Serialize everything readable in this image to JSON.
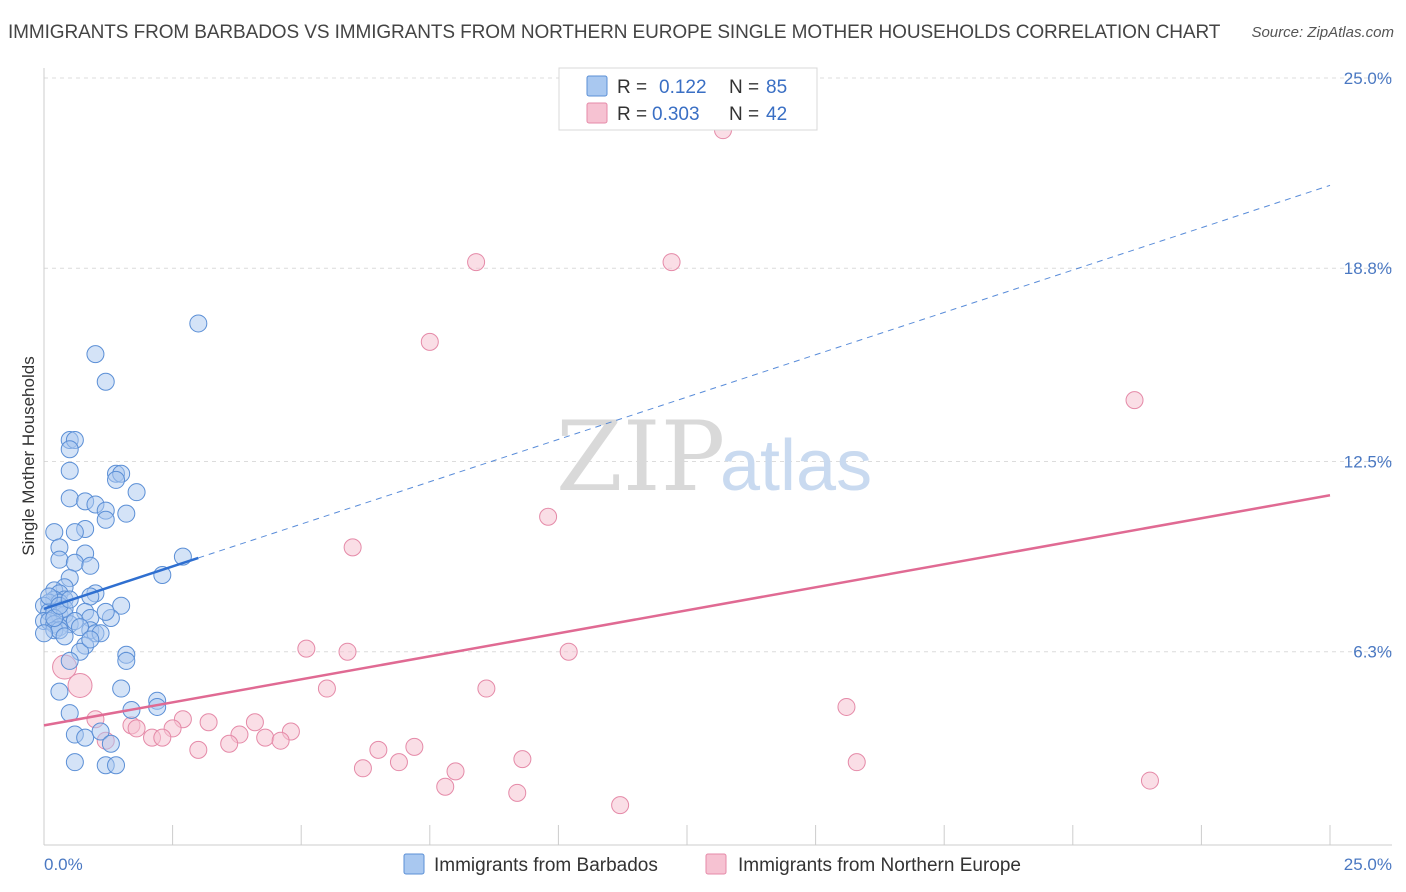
{
  "header": {
    "title": "IMMIGRANTS FROM BARBADOS VS IMMIGRANTS FROM NORTHERN EUROPE SINGLE MOTHER HOUSEHOLDS CORRELATION CHART",
    "source": "Source: ZipAtlas.com"
  },
  "watermark": {
    "zip": "ZIP",
    "atlas": "atlas"
  },
  "colors": {
    "blue_fill": "#a9c8f0",
    "blue_stroke": "#5b8fd6",
    "blue_line": "#2f6fd0",
    "pink_fill": "#f6c2d2",
    "pink_stroke": "#e58aa8",
    "pink_line": "#e06a93",
    "grid": "#dcdcdc",
    "tick_text": "#4a78c2"
  },
  "chart_data": {
    "type": "scatter",
    "title": "IMMIGRANTS FROM BARBADOS VS IMMIGRANTS FROM NORTHERN EUROPE SINGLE MOTHER HOUSEHOLDS CORRELATION CHART",
    "xlabel": "",
    "ylabel": "Single Mother Households",
    "xlim": [
      0,
      25
    ],
    "ylim": [
      0,
      25
    ],
    "x_tick_labels": [
      "0.0%",
      "25.0%"
    ],
    "y_ticks": [
      6.3,
      12.5,
      18.8,
      25.0
    ],
    "y_tick_labels": [
      "6.3%",
      "12.5%",
      "18.8%",
      "25.0%"
    ],
    "legend": {
      "position": "top-center",
      "entries": [
        {
          "r_label": "R =",
          "r_value": "0.122",
          "n_label": "N =",
          "n_value": "85"
        },
        {
          "r_label": "R =",
          "r_value": "0.303",
          "n_label": "N =",
          "n_value": "42"
        }
      ]
    },
    "series": [
      {
        "name": "Immigrants from Barbados",
        "color": "#5b8fd6",
        "trend": {
          "x0": 0,
          "y0": 7.7,
          "x_solid_end": 3.0,
          "x1": 25,
          "y1": 21.5
        },
        "points": [
          [
            3.0,
            17.0
          ],
          [
            1.0,
            16.0
          ],
          [
            1.2,
            15.1
          ],
          [
            0.5,
            13.2
          ],
          [
            0.6,
            13.2
          ],
          [
            0.5,
            12.9
          ],
          [
            0.5,
            12.2
          ],
          [
            1.4,
            12.1
          ],
          [
            1.5,
            12.1
          ],
          [
            1.4,
            11.9
          ],
          [
            0.5,
            11.3
          ],
          [
            0.8,
            11.2
          ],
          [
            1.0,
            11.1
          ],
          [
            1.8,
            11.5
          ],
          [
            1.2,
            10.9
          ],
          [
            1.6,
            10.8
          ],
          [
            1.2,
            10.6
          ],
          [
            0.8,
            10.3
          ],
          [
            0.6,
            10.2
          ],
          [
            0.2,
            10.2
          ],
          [
            0.3,
            9.7
          ],
          [
            0.8,
            9.5
          ],
          [
            0.3,
            9.3
          ],
          [
            0.6,
            9.2
          ],
          [
            0.9,
            9.1
          ],
          [
            2.7,
            9.4
          ],
          [
            2.3,
            8.8
          ],
          [
            0.5,
            8.7
          ],
          [
            0.4,
            8.4
          ],
          [
            0.2,
            8.3
          ],
          [
            0.3,
            8.2
          ],
          [
            1.0,
            8.2
          ],
          [
            0.9,
            8.1
          ],
          [
            0.4,
            8.0
          ],
          [
            0.2,
            8.0
          ],
          [
            0.1,
            7.9
          ],
          [
            0.3,
            7.9
          ],
          [
            0.0,
            7.8
          ],
          [
            1.5,
            7.8
          ],
          [
            0.1,
            7.6
          ],
          [
            0.2,
            7.6
          ],
          [
            0.3,
            7.5
          ],
          [
            0.4,
            7.5
          ],
          [
            0.8,
            7.6
          ],
          [
            0.9,
            7.4
          ],
          [
            0.0,
            7.3
          ],
          [
            0.1,
            7.3
          ],
          [
            0.2,
            7.2
          ],
          [
            0.5,
            7.2
          ],
          [
            0.3,
            7.1
          ],
          [
            0.2,
            7.0
          ],
          [
            0.3,
            7.0
          ],
          [
            0.9,
            7.0
          ],
          [
            1.0,
            6.9
          ],
          [
            1.1,
            6.9
          ],
          [
            0.0,
            6.9
          ],
          [
            0.8,
            6.5
          ],
          [
            0.7,
            6.3
          ],
          [
            1.6,
            6.2
          ],
          [
            1.6,
            6.0
          ],
          [
            0.5,
            6.0
          ],
          [
            0.3,
            5.0
          ],
          [
            1.5,
            5.1
          ],
          [
            2.2,
            4.7
          ],
          [
            2.2,
            4.5
          ],
          [
            0.5,
            4.3
          ],
          [
            1.7,
            4.4
          ],
          [
            0.6,
            3.6
          ],
          [
            0.8,
            3.5
          ],
          [
            1.1,
            3.7
          ],
          [
            1.3,
            3.3
          ],
          [
            0.6,
            2.7
          ],
          [
            1.2,
            2.6
          ],
          [
            1.4,
            2.6
          ],
          [
            0.4,
            7.7
          ],
          [
            0.1,
            8.1
          ],
          [
            0.6,
            7.3
          ],
          [
            1.3,
            7.4
          ],
          [
            0.2,
            7.4
          ],
          [
            0.7,
            7.1
          ],
          [
            1.2,
            7.6
          ],
          [
            0.4,
            6.8
          ],
          [
            0.9,
            6.7
          ],
          [
            0.3,
            7.8
          ],
          [
            0.5,
            8.0
          ]
        ]
      },
      {
        "name": "Immigrants from Northern Europe",
        "color": "#e58aa8",
        "trend": {
          "x0": 0,
          "y0": 3.9,
          "x1": 25,
          "y1": 11.4
        },
        "points": [
          [
            13.2,
            23.3
          ],
          [
            8.4,
            19.0
          ],
          [
            12.2,
            19.0
          ],
          [
            7.5,
            16.4
          ],
          [
            21.2,
            14.5
          ],
          [
            9.8,
            10.7
          ],
          [
            6.0,
            9.7
          ],
          [
            5.1,
            6.4
          ],
          [
            5.9,
            6.3
          ],
          [
            10.2,
            6.3
          ],
          [
            0.4,
            5.8
          ],
          [
            0.7,
            5.2
          ],
          [
            5.5,
            5.1
          ],
          [
            8.6,
            5.1
          ],
          [
            15.6,
            4.5
          ],
          [
            2.7,
            4.1
          ],
          [
            3.2,
            4.0
          ],
          [
            4.1,
            4.0
          ],
          [
            1.0,
            4.1
          ],
          [
            1.7,
            3.9
          ],
          [
            1.8,
            3.8
          ],
          [
            2.5,
            3.8
          ],
          [
            4.8,
            3.7
          ],
          [
            2.1,
            3.5
          ],
          [
            2.3,
            3.5
          ],
          [
            3.8,
            3.6
          ],
          [
            4.3,
            3.5
          ],
          [
            4.6,
            3.4
          ],
          [
            3.6,
            3.3
          ],
          [
            6.5,
            3.1
          ],
          [
            7.2,
            3.2
          ],
          [
            3.0,
            3.1
          ],
          [
            1.2,
            3.4
          ],
          [
            6.9,
            2.7
          ],
          [
            6.2,
            2.5
          ],
          [
            9.3,
            2.8
          ],
          [
            15.8,
            2.7
          ],
          [
            8.0,
            2.4
          ],
          [
            21.5,
            2.1
          ],
          [
            7.8,
            1.9
          ],
          [
            9.2,
            1.7
          ],
          [
            11.2,
            1.3
          ]
        ]
      }
    ]
  },
  "bottom_legend": {
    "items": [
      "Immigrants from Barbados",
      "Immigrants from Northern Europe"
    ]
  }
}
